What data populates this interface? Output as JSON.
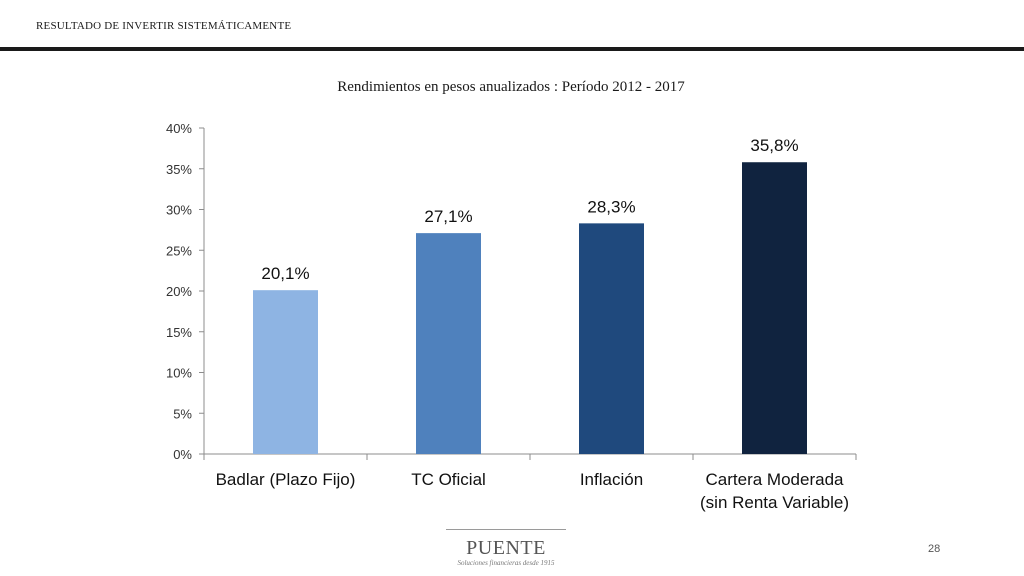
{
  "header": {
    "title": "RESULTADO DE INVERTIR SISTEMÁTICAMENTE"
  },
  "chart_data": {
    "type": "bar",
    "title": "Rendimientos en pesos anualizados  : Período 2012 - 2017",
    "categories": [
      "Badlar (Plazo Fijo)",
      "TC Oficial",
      "Inflación",
      "Cartera Moderada\n(sin Renta Variable)"
    ],
    "values": [
      20.1,
      27.1,
      28.3,
      35.8
    ],
    "data_labels": [
      "20,1%",
      "27,1%",
      "28,3%",
      "35,8%"
    ],
    "bar_colors": [
      "#8EB4E3",
      "#4F81BD",
      "#1F497D",
      "#10233F"
    ],
    "ylim": [
      0,
      40
    ],
    "yticks": [
      0,
      5,
      10,
      15,
      20,
      25,
      30,
      35,
      40
    ],
    "ytick_labels": [
      "0%",
      "5%",
      "10%",
      "15%",
      "20%",
      "25%",
      "30%",
      "35%",
      "40%"
    ],
    "xlabel": "",
    "ylabel": "",
    "grid": false,
    "legend": false
  },
  "footer": {
    "logo_name": "PUENTE",
    "logo_tagline": "Soluciones financieras desde 1915",
    "page_number": "28"
  }
}
